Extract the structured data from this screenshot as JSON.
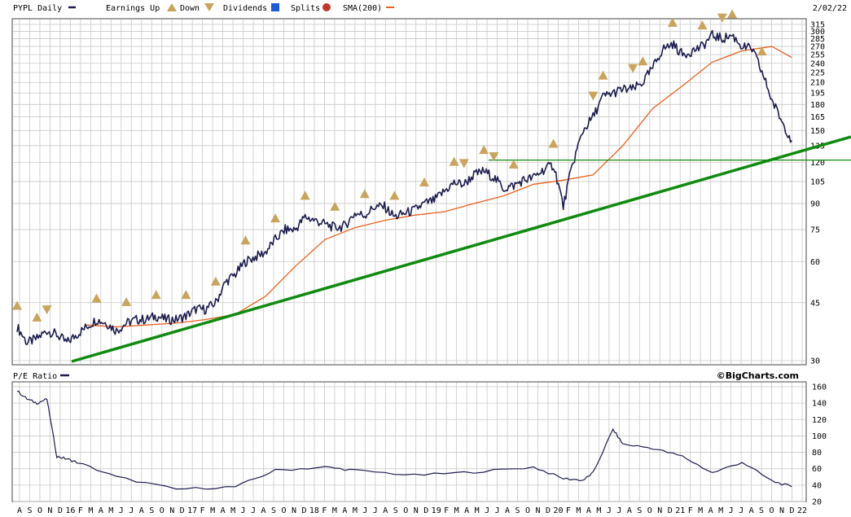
{
  "header": {
    "symbol_label": "PYPL Daily",
    "legend_earnings_up": "Earnings Up",
    "legend_down": "Down",
    "legend_dividends": "Dividends",
    "legend_splits": "Splits",
    "legend_sma": "SMA(200)",
    "date": "2/02/22",
    "icon_earnings_up": "earnings-up-triangle-icon",
    "icon_earnings_down": "earnings-down-triangle-icon",
    "icon_dividends": "dividends-d-icon",
    "icon_splits": "splits-s-icon"
  },
  "lower_panel": {
    "label": "P/E Ratio",
    "brand": "©BigCharts.com"
  },
  "colors": {
    "price": "#1c1c4e",
    "sma": "#e8601c",
    "trendline": "#108a10",
    "support": "#108a10",
    "earnings_marker": "#c9a45e",
    "dividends": "#1f5bd6",
    "splits": "#c0392b",
    "grid": "#c8c8c8"
  },
  "chart_data": [
    {
      "type": "line",
      "title": "PYPL Daily",
      "scale": "log",
      "ylim": [
        30,
        315
      ],
      "y_ticks": [
        30,
        45,
        60,
        75,
        90,
        105,
        120,
        135,
        150,
        165,
        180,
        195,
        210,
        225,
        240,
        255,
        270,
        285,
        300,
        315
      ],
      "x_ticks": [
        "A",
        "S",
        "O",
        "N",
        "D",
        "16",
        "F",
        "M",
        "A",
        "M",
        "J",
        "J",
        "A",
        "S",
        "O",
        "N",
        "D",
        "17",
        "F",
        "M",
        "A",
        "M",
        "J",
        "J",
        "A",
        "S",
        "O",
        "N",
        "D",
        "18",
        "F",
        "M",
        "A",
        "M",
        "J",
        "J",
        "A",
        "S",
        "O",
        "N",
        "D",
        "19",
        "F",
        "M",
        "A",
        "M",
        "J",
        "J",
        "A",
        "S",
        "O",
        "N",
        "D",
        "20",
        "F",
        "M",
        "A",
        "M",
        "J",
        "J",
        "A",
        "S",
        "O",
        "N",
        "D",
        "21",
        "F",
        "M",
        "A",
        "M",
        "J",
        "J",
        "A",
        "S",
        "O",
        "N",
        "D",
        "22"
      ],
      "grid": true,
      "series": [
        {
          "name": "PYPL Daily",
          "x": [
            "2015-08",
            "2015-09",
            "2015-10",
            "2015-11",
            "2015-12",
            "2016-01",
            "2016-02",
            "2016-03",
            "2016-04",
            "2016-05",
            "2016-06",
            "2016-07",
            "2016-08",
            "2016-09",
            "2016-10",
            "2016-11",
            "2016-12",
            "2017-01",
            "2017-02",
            "2017-03",
            "2017-04",
            "2017-05",
            "2017-06",
            "2017-07",
            "2017-08",
            "2017-09",
            "2017-10",
            "2017-11",
            "2017-12",
            "2018-01",
            "2018-02",
            "2018-03",
            "2018-04",
            "2018-05",
            "2018-06",
            "2018-07",
            "2018-08",
            "2018-09",
            "2018-10",
            "2018-11",
            "2018-12",
            "2019-01",
            "2019-02",
            "2019-03",
            "2019-04",
            "2019-05",
            "2019-06",
            "2019-07",
            "2019-08",
            "2019-09",
            "2019-10",
            "2019-11",
            "2019-12",
            "2020-01",
            "2020-02",
            "2020-03",
            "2020-04",
            "2020-05",
            "2020-06",
            "2020-07",
            "2020-08",
            "2020-09",
            "2020-10",
            "2020-11",
            "2020-12",
            "2021-01",
            "2021-02",
            "2021-03",
            "2021-04",
            "2021-05",
            "2021-06",
            "2021-07",
            "2021-08",
            "2021-09",
            "2021-10",
            "2021-11",
            "2021-12",
            "2022-01",
            "2022-02"
          ],
          "values": [
            38,
            34,
            35,
            37,
            36,
            34,
            36,
            38,
            40,
            39,
            37,
            39,
            40,
            40,
            41,
            40,
            40,
            41,
            43,
            43,
            45,
            52,
            55,
            60,
            62,
            64,
            70,
            75,
            75,
            82,
            80,
            78,
            76,
            77,
            84,
            83,
            88,
            88,
            82,
            84,
            86,
            90,
            92,
            98,
            104,
            103,
            110,
            113,
            108,
            100,
            102,
            106,
            108,
            114,
            118,
            88,
            120,
            150,
            165,
            190,
            195,
            200,
            200,
            210,
            232,
            265,
            275,
            255,
            262,
            270,
            292,
            285,
            292,
            270,
            265,
            225,
            185,
            160,
            140
          ]
        },
        {
          "name": "SMA(200)",
          "x": [
            "2016-03",
            "2016-06",
            "2016-09",
            "2016-12",
            "2017-03",
            "2017-06",
            "2017-09",
            "2017-12",
            "2018-03",
            "2018-06",
            "2018-09",
            "2018-12",
            "2019-03",
            "2019-06",
            "2019-09",
            "2019-12",
            "2020-03",
            "2020-06",
            "2020-09",
            "2020-12",
            "2021-03",
            "2021-06",
            "2021-09",
            "2021-12",
            "2022-02"
          ],
          "values": [
            38.5,
            38,
            38.5,
            39,
            40,
            41.5,
            47,
            58,
            70,
            76,
            80,
            83,
            85,
            90,
            95,
            103,
            106,
            110,
            135,
            175,
            205,
            242,
            262,
            270,
            250
          ]
        }
      ],
      "annotations": {
        "earnings_up": [
          "2015-08",
          "2015-10",
          "2016-04",
          "2016-07",
          "2016-10",
          "2017-01",
          "2017-04",
          "2017-07",
          "2017-10",
          "2018-01",
          "2018-04",
          "2018-07",
          "2018-10",
          "2019-01",
          "2019-04",
          "2019-07",
          "2019-10",
          "2020-02",
          "2020-07",
          "2020-11",
          "2021-02",
          "2021-05",
          "2021-08",
          "2021-11"
        ],
        "earnings_down": [
          "2015-11",
          "2019-05",
          "2019-08",
          "2020-06",
          "2020-10",
          "2021-07"
        ],
        "support_level": 122
      }
    },
    {
      "type": "line",
      "title": "P/E Ratio",
      "ylim": [
        20,
        160
      ],
      "y_ticks": [
        20,
        40,
        60,
        80,
        100,
        120,
        140,
        160
      ],
      "grid": true,
      "series": [
        {
          "name": "P/E Ratio",
          "x": [
            "2015-08",
            "2015-09",
            "2015-10",
            "2015-11",
            "2015-12",
            "2016-01",
            "2016-02",
            "2016-06",
            "2016-12",
            "2017-06",
            "2017-10",
            "2018-03",
            "2018-06",
            "2018-12",
            "2019-06",
            "2019-12",
            "2020-03",
            "2020-05",
            "2020-06",
            "2020-08",
            "2020-09",
            "2020-12",
            "2021-03",
            "2021-06",
            "2021-09",
            "2021-12",
            "2022-02"
          ],
          "values": [
            155,
            145,
            140,
            145,
            75,
            72,
            68,
            50,
            35,
            38,
            58,
            62,
            58,
            52,
            56,
            62,
            48,
            46,
            55,
            108,
            90,
            85,
            75,
            55,
            68,
            45,
            38
          ]
        }
      ]
    }
  ]
}
